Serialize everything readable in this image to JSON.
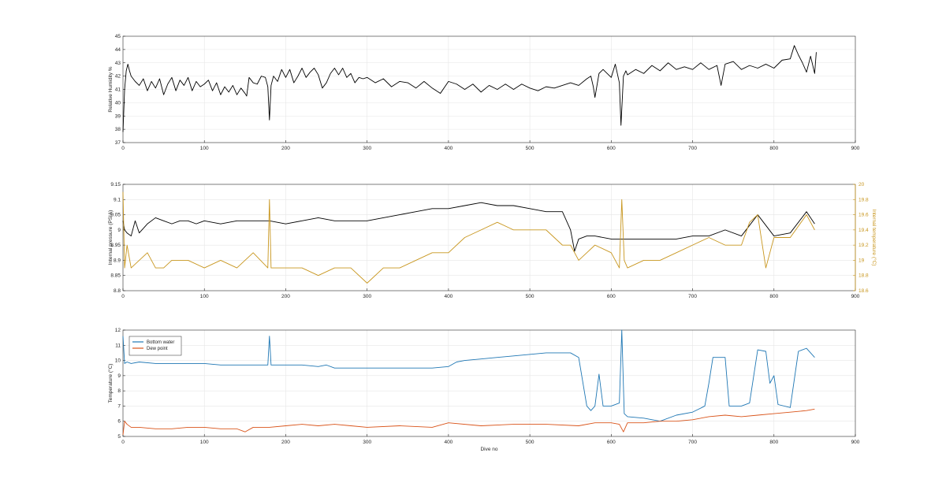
{
  "figure": {
    "colors": {
      "axis": "#262626",
      "grid": "#e6e6e6",
      "black": "#000000",
      "gold": "#c8961e",
      "blue": "#1f77b4",
      "orange": "#d95319"
    }
  },
  "chart_data": [
    {
      "type": "line",
      "xlabel": "",
      "ylabel": "Relative Humidity %",
      "xlim": [
        0,
        900
      ],
      "ylim": [
        37,
        45
      ],
      "xticks": [
        0,
        100,
        200,
        300,
        400,
        500,
        600,
        700,
        800,
        900
      ],
      "yticks": [
        37,
        38,
        39,
        40,
        41,
        42,
        43,
        44,
        45
      ],
      "grid": true,
      "series": [
        {
          "color": "#000000",
          "x": [
            0,
            2,
            4,
            6,
            8,
            10,
            15,
            20,
            25,
            30,
            35,
            40,
            45,
            50,
            55,
            60,
            65,
            70,
            75,
            80,
            85,
            90,
            95,
            100,
            105,
            110,
            115,
            120,
            125,
            130,
            135,
            140,
            145,
            150,
            152,
            155,
            160,
            165,
            170,
            175,
            178,
            180,
            182,
            185,
            190,
            195,
            200,
            205,
            210,
            215,
            220,
            225,
            230,
            235,
            240,
            245,
            250,
            255,
            260,
            265,
            270,
            275,
            280,
            285,
            290,
            295,
            300,
            310,
            320,
            330,
            340,
            350,
            360,
            370,
            380,
            390,
            400,
            410,
            420,
            430,
            440,
            450,
            460,
            470,
            480,
            490,
            500,
            510,
            520,
            530,
            540,
            550,
            560,
            570,
            575,
            578,
            580,
            585,
            590,
            600,
            605,
            610,
            612,
            615,
            618,
            620,
            630,
            640,
            650,
            660,
            670,
            680,
            690,
            700,
            710,
            720,
            730,
            735,
            740,
            750,
            760,
            770,
            780,
            790,
            800,
            810,
            820,
            825,
            830,
            835,
            840,
            845,
            850,
            852
          ],
          "y": [
            37.8,
            41.0,
            42.4,
            42.9,
            42.4,
            42.0,
            41.6,
            41.3,
            41.8,
            40.9,
            41.6,
            41.1,
            41.8,
            40.6,
            41.4,
            41.9,
            40.9,
            41.7,
            41.3,
            41.9,
            40.9,
            41.6,
            41.2,
            41.4,
            41.7,
            40.9,
            41.5,
            40.6,
            41.2,
            40.8,
            41.3,
            40.6,
            41.1,
            40.7,
            40.5,
            41.9,
            41.5,
            41.4,
            42.0,
            41.9,
            41.2,
            38.7,
            41.3,
            42.0,
            41.6,
            42.5,
            41.9,
            42.5,
            41.5,
            42.0,
            42.6,
            41.9,
            42.3,
            42.6,
            42.1,
            41.1,
            41.5,
            42.2,
            42.6,
            42.1,
            42.6,
            41.9,
            42.2,
            41.5,
            41.9,
            41.8,
            41.9,
            41.5,
            41.8,
            41.2,
            41.6,
            41.5,
            41.1,
            41.6,
            41.1,
            40.7,
            41.6,
            41.4,
            41.0,
            41.4,
            40.8,
            41.3,
            41.0,
            41.4,
            41.0,
            41.4,
            41.1,
            40.9,
            41.2,
            41.1,
            41.3,
            41.5,
            41.3,
            41.8,
            42.0,
            41.2,
            40.4,
            42.2,
            42.5,
            41.9,
            42.9,
            41.5,
            38.3,
            42.0,
            42.4,
            42.1,
            42.5,
            42.2,
            42.8,
            42.4,
            43.0,
            42.5,
            42.7,
            42.5,
            43.0,
            42.5,
            42.8,
            41.3,
            42.9,
            43.1,
            42.5,
            42.8,
            42.6,
            42.9,
            42.6,
            43.2,
            43.3,
            44.3,
            43.6,
            43.0,
            42.3,
            43.5,
            42.2,
            43.8
          ]
        }
      ]
    },
    {
      "type": "line",
      "xlabel": "",
      "ylabel": "Internal pressure (PSIA)",
      "ylabel_right": "Internal temperature (°C)",
      "xlim": [
        0,
        900
      ],
      "ylim": [
        8.8,
        9.15
      ],
      "ylim_right": [
        18.6,
        20
      ],
      "xticks": [
        0,
        100,
        200,
        300,
        400,
        500,
        600,
        700,
        800,
        900
      ],
      "yticks": [
        "8.8",
        "8.85",
        "8.9",
        "8.95",
        "9",
        "9.05",
        "9.1",
        "9.15"
      ],
      "yticks_right": [
        "18.6",
        "18.8",
        "19",
        "19.2",
        "19.4",
        "19.6",
        "19.8",
        "20"
      ],
      "grid": true,
      "series": [
        {
          "color": "#000000",
          "axis": "left",
          "x": [
            0,
            2,
            5,
            10,
            15,
            20,
            30,
            40,
            50,
            60,
            70,
            80,
            90,
            100,
            120,
            140,
            160,
            180,
            200,
            220,
            240,
            260,
            280,
            300,
            320,
            340,
            360,
            380,
            400,
            420,
            440,
            460,
            480,
            500,
            520,
            540,
            550,
            555,
            560,
            570,
            580,
            600,
            620,
            640,
            660,
            680,
            700,
            720,
            740,
            760,
            780,
            800,
            820,
            840,
            850
          ],
          "y": [
            9.03,
            9.0,
            8.99,
            8.98,
            9.03,
            8.99,
            9.02,
            9.04,
            9.03,
            9.02,
            9.03,
            9.03,
            9.02,
            9.03,
            9.02,
            9.03,
            9.03,
            9.03,
            9.02,
            9.03,
            9.04,
            9.03,
            9.03,
            9.03,
            9.04,
            9.05,
            9.06,
            9.07,
            9.07,
            9.08,
            9.09,
            9.08,
            9.08,
            9.07,
            9.06,
            9.06,
            9.0,
            8.93,
            8.97,
            8.98,
            8.98,
            8.97,
            8.97,
            8.97,
            8.97,
            8.97,
            8.98,
            8.98,
            9.0,
            8.98,
            9.05,
            8.98,
            8.99,
            9.06,
            9.02
          ]
        },
        {
          "color": "#c8961e",
          "axis": "right",
          "x": [
            0,
            2,
            5,
            10,
            20,
            30,
            40,
            50,
            60,
            80,
            100,
            120,
            140,
            160,
            178,
            180,
            182,
            200,
            220,
            240,
            260,
            280,
            300,
            320,
            340,
            360,
            380,
            400,
            420,
            440,
            460,
            480,
            500,
            520,
            540,
            550,
            560,
            570,
            580,
            600,
            610,
            613,
            616,
            620,
            640,
            660,
            680,
            700,
            720,
            740,
            760,
            770,
            780,
            790,
            800,
            820,
            840,
            850
          ],
          "y": [
            19.9,
            18.9,
            19.2,
            18.9,
            19.0,
            19.1,
            18.9,
            18.9,
            19.0,
            19.0,
            18.9,
            19.0,
            18.9,
            19.1,
            18.9,
            19.8,
            18.9,
            18.9,
            18.9,
            18.8,
            18.9,
            18.9,
            18.7,
            18.9,
            18.9,
            19.0,
            19.1,
            19.1,
            19.3,
            19.4,
            19.5,
            19.4,
            19.4,
            19.4,
            19.2,
            19.2,
            19.0,
            19.1,
            19.2,
            19.1,
            18.9,
            19.8,
            19.0,
            18.9,
            19.0,
            19.0,
            19.1,
            19.2,
            19.3,
            19.2,
            19.2,
            19.5,
            19.6,
            18.9,
            19.3,
            19.3,
            19.6,
            19.4
          ]
        }
      ]
    },
    {
      "type": "line",
      "xlabel": "Dive no",
      "ylabel": "Temperature (°C)",
      "xlim": [
        0,
        900
      ],
      "ylim": [
        5,
        12
      ],
      "xticks": [
        0,
        100,
        200,
        300,
        400,
        500,
        600,
        700,
        800,
        900
      ],
      "yticks": [
        5,
        6,
        7,
        8,
        9,
        10,
        11,
        12
      ],
      "grid": true,
      "legend": "top-left",
      "series": [
        {
          "name": "Bottom water",
          "color": "#1f77b4",
          "x": [
            0,
            2,
            5,
            10,
            20,
            40,
            60,
            80,
            100,
            120,
            140,
            160,
            178,
            180,
            182,
            200,
            220,
            240,
            250,
            260,
            280,
            300,
            340,
            380,
            400,
            410,
            420,
            440,
            480,
            520,
            550,
            560,
            570,
            575,
            580,
            585,
            590,
            600,
            610,
            613,
            616,
            620,
            640,
            660,
            680,
            700,
            715,
            720,
            725,
            740,
            745,
            760,
            770,
            780,
            790,
            795,
            800,
            805,
            820,
            830,
            840,
            850
          ],
          "y": [
            11.6,
            9.8,
            9.9,
            9.8,
            9.9,
            9.8,
            9.8,
            9.8,
            9.8,
            9.7,
            9.7,
            9.7,
            9.7,
            11.6,
            9.7,
            9.7,
            9.7,
            9.6,
            9.7,
            9.5,
            9.5,
            9.5,
            9.5,
            9.5,
            9.6,
            9.9,
            10.0,
            10.1,
            10.3,
            10.5,
            10.5,
            10.2,
            7.0,
            6.7,
            7.0,
            9.1,
            7.0,
            7.0,
            7.2,
            12.0,
            6.5,
            6.3,
            6.2,
            6.0,
            6.4,
            6.6,
            7.0,
            8.5,
            10.2,
            10.2,
            7.0,
            7.0,
            7.2,
            10.7,
            10.6,
            8.5,
            9.0,
            7.1,
            6.9,
            10.6,
            10.8,
            10.2
          ]
        },
        {
          "name": "Dew point",
          "color": "#d95319",
          "x": [
            0,
            2,
            5,
            10,
            20,
            40,
            60,
            80,
            100,
            120,
            140,
            150,
            160,
            180,
            200,
            220,
            240,
            260,
            280,
            300,
            340,
            380,
            400,
            440,
            480,
            520,
            560,
            580,
            600,
            610,
            615,
            620,
            640,
            660,
            680,
            700,
            720,
            740,
            760,
            780,
            800,
            820,
            840,
            850
          ],
          "y": [
            5.1,
            6.0,
            5.8,
            5.6,
            5.6,
            5.5,
            5.5,
            5.6,
            5.6,
            5.5,
            5.5,
            5.3,
            5.6,
            5.6,
            5.7,
            5.8,
            5.7,
            5.8,
            5.7,
            5.6,
            5.7,
            5.6,
            5.9,
            5.7,
            5.8,
            5.8,
            5.7,
            5.9,
            5.9,
            5.8,
            5.3,
            5.9,
            5.9,
            6.0,
            6.0,
            6.1,
            6.3,
            6.4,
            6.3,
            6.4,
            6.5,
            6.6,
            6.7,
            6.8
          ]
        }
      ]
    }
  ]
}
